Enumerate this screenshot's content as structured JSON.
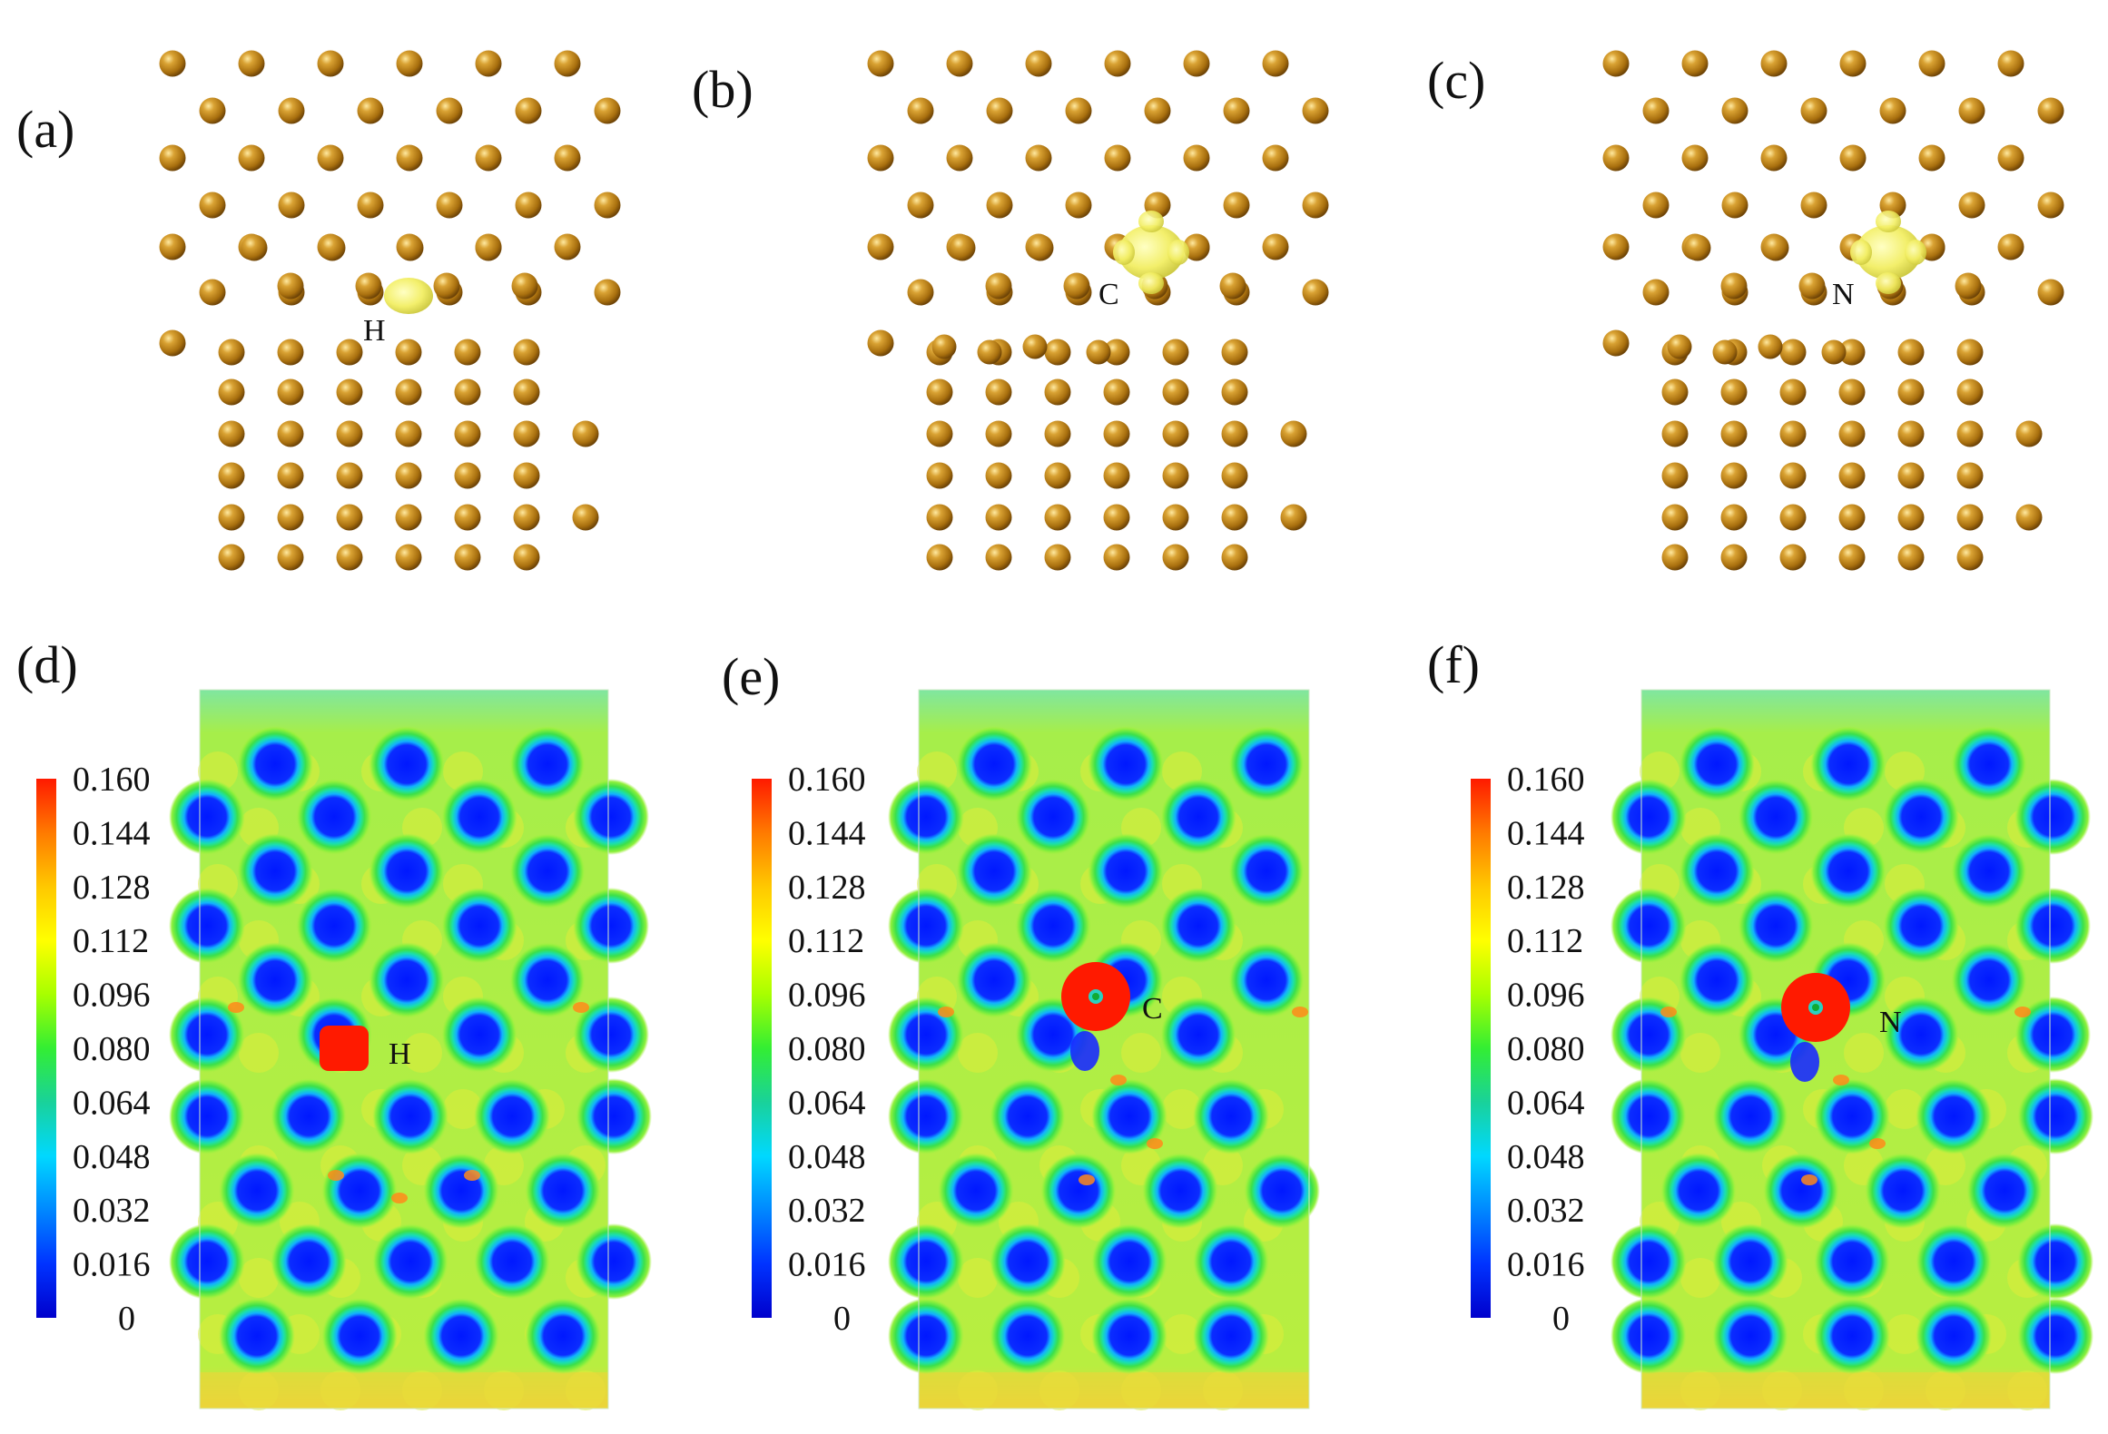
{
  "panels": {
    "a": {
      "label": "(a)",
      "atom": "H"
    },
    "b": {
      "label": "(b)",
      "atom": "C"
    },
    "c": {
      "label": "(c)",
      "atom": "N"
    },
    "d": {
      "label": "(d)",
      "atom": "H"
    },
    "e": {
      "label": "(e)",
      "atom": "C"
    },
    "f": {
      "label": "(f)",
      "atom": "N"
    }
  },
  "colorbar": {
    "ticks": [
      "0.160",
      "0.144",
      "0.128",
      "0.112",
      "0.096",
      "0.080",
      "0.064",
      "0.048",
      "0.032",
      "0.016",
      "0"
    ],
    "colors": [
      "#ff1a00",
      "#ff7a00",
      "#ffc800",
      "#ffff00",
      "#a8ff00",
      "#33ee33",
      "#19d29a",
      "#00d8ff",
      "#0088ff",
      "#0033ff",
      "#0000cc"
    ]
  },
  "colors": {
    "atom": "#b8860b",
    "isosurface": "#f2f06a",
    "map_background": "#a9ee55",
    "map_low": "#1a2aff",
    "map_high": "#ff1a00"
  }
}
